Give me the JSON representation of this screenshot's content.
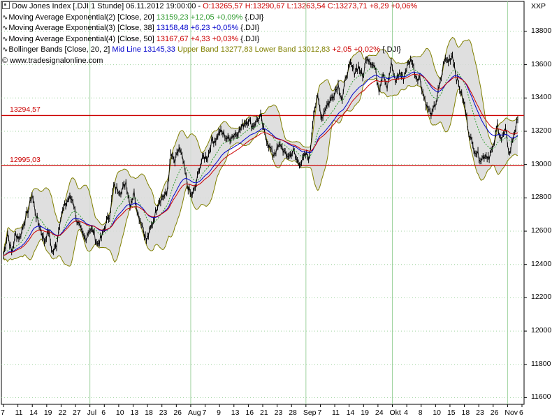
{
  "legend": {
    "title": "Dow Jones Index [.DJI  1 Stunde] 06.11.2012 19:00:00 - ",
    "ohlc": "O:13265,57 H:13290,67 L:13263,54 ",
    "close_change": "C:13273,71 +8,29 +0,06%",
    "ema20_label": "Moving Average Exponential(2) [Close, 20] ",
    "ema20_value": "13159,23 +12,05 +0,09% ",
    "ema20_suffix": "{.DJI}",
    "ema38_label": "Moving Average Exponential(3) [Close, 38] ",
    "ema38_value": "13158,48 +6,23 +0,05% ",
    "ema38_suffix": "{.DJI}",
    "ema50_label": "Moving Average Exponential(4) [Close, 50] ",
    "ema50_value": "13167,67 +4,33 +0,03% ",
    "ema50_suffix": "{.DJI}",
    "bb_label": "Bollinger Bands [Close, 20, 2] ",
    "bb_mid": "Mid Line 13145,33 ",
    "bb_upper": "Upper Band 13277,83 Lower Band 13012,83 ",
    "bb_change": "+2,05 +0,02% ",
    "bb_suffix": "{.DJI}",
    "copyright": "© www.tradesignalonline.com"
  },
  "corner_label": "XXP",
  "colors": {
    "price": "#000000",
    "ema20": "#2e9a2e",
    "ema38": "#0000cc",
    "ema50": "#cc0000",
    "bollinger_fill": "#d9d9d9",
    "bollinger_line": "#808000",
    "hline": "#cc0000",
    "grid": "#9fd39f"
  },
  "chart_data": {
    "type": "line",
    "y_axis_ticks": [
      11600,
      11800,
      12000,
      12200,
      12400,
      12600,
      12800,
      13000,
      13200,
      13400,
      13600,
      13800
    ],
    "y_labels": [
      "11600",
      "11800",
      "12000",
      "12200",
      "12400",
      "12600",
      "12800",
      "13000",
      "13200",
      "13400",
      "13600",
      "13800"
    ],
    "ylim": [
      11560,
      13980
    ],
    "x_tick_labels": [
      "7",
      "11",
      "14",
      "19",
      "22",
      "27",
      "Jul",
      "6",
      "10",
      "13",
      "18",
      "23",
      "26",
      "Aug",
      "7",
      "9",
      "13",
      "16",
      "21",
      "23",
      "28",
      "Sep",
      "7",
      "11",
      "14",
      "19",
      "24",
      "Okt",
      "4",
      "8",
      "10",
      "15",
      "18",
      "23",
      "26",
      "Nov",
      "6"
    ],
    "horizontal_lines": [
      {
        "label": "13294,57",
        "value": 13294.57
      },
      {
        "label": "12995,03",
        "value": 12995.03
      }
    ],
    "series_close": [
      12455,
      12590,
      12470,
      12580,
      12560,
      12650,
      12720,
      12820,
      12690,
      12620,
      12540,
      12600,
      12470,
      12520,
      12690,
      12750,
      12800,
      12790,
      12660,
      12600,
      12550,
      12610,
      12600,
      12520,
      12560,
      12640,
      12700,
      12870,
      12850,
      12840,
      12900,
      12760,
      12830,
      12700,
      12640,
      12540,
      12610,
      12690,
      12780,
      12810,
      12820,
      13060,
      13010,
      13100,
      13020,
      12880,
      12810,
      12860,
      12980,
      13050,
      13040,
      13140,
      13150,
      13200,
      13180,
      13150,
      13170,
      13190,
      13210,
      13250,
      13270,
      13230,
      13260,
      13290,
      13180,
      13120,
      13060,
      13090,
      13120,
      13060,
      13050,
      13080,
      13020,
      13010,
      13060,
      13040,
      13320,
      13400,
      13280,
      13350,
      13380,
      13430,
      13480,
      13390,
      13540,
      13600,
      13560,
      13590,
      13520,
      13650,
      13620,
      13580,
      13450,
      13560,
      13460,
      13600,
      13500,
      13550,
      13520,
      13600,
      13630,
      13530,
      13520,
      13410,
      13330,
      13300,
      13380,
      13490,
      13630,
      13620,
      13660,
      13520,
      13440,
      13350,
      13200,
      13110,
      13070,
      13030,
      13060,
      13050,
      13100,
      13240,
      13150,
      13200,
      13060,
      13180,
      13270
    ],
    "series": [
      {
        "name": "EMA 20",
        "values": []
      },
      {
        "name": "EMA 38",
        "values": []
      },
      {
        "name": "EMA 50",
        "values": []
      }
    ],
    "bollinger": {
      "period": 20,
      "stddev": 2
    },
    "grid": true
  }
}
